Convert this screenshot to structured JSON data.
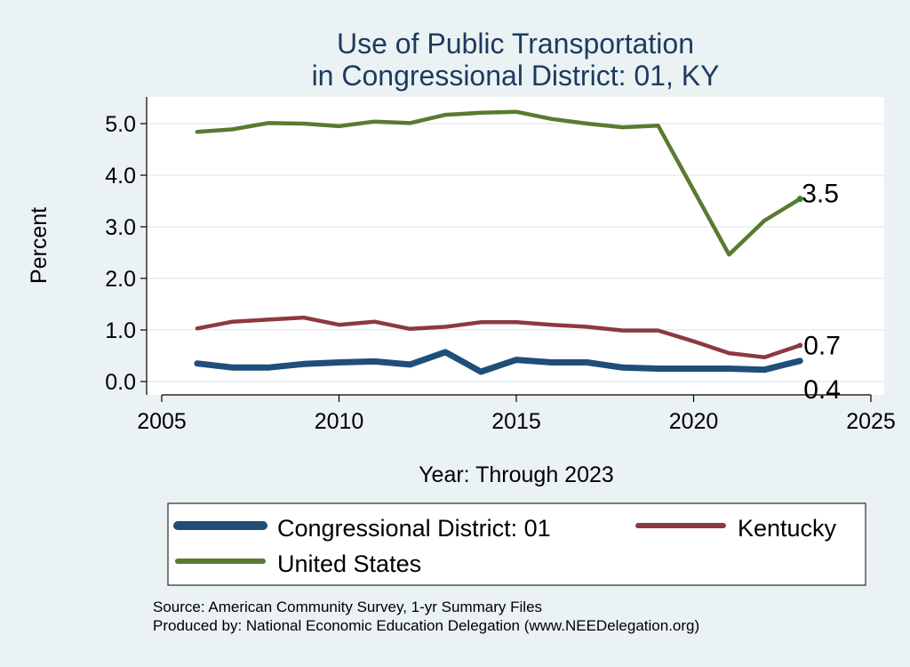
{
  "chart_data": {
    "type": "line",
    "title": [
      "Use of Public Transportation",
      "in Congressional District: 01, KY"
    ],
    "xlabel": "Year: Through 2023",
    "ylabel": "Percent",
    "xlim": [
      2005,
      2025
    ],
    "ylim": [
      0,
      5.3
    ],
    "x_ticks": [
      "2005",
      "2010",
      "2015",
      "2020",
      "2025"
    ],
    "y_ticks": [
      "0.0",
      "1.0",
      "2.0",
      "3.0",
      "4.0",
      "5.0"
    ],
    "grid": true,
    "legend_position": "bottom",
    "x": [
      2006,
      2007,
      2008,
      2009,
      2010,
      2011,
      2012,
      2013,
      2014,
      2015,
      2016,
      2017,
      2018,
      2019,
      2020,
      2021,
      2022,
      2023
    ],
    "series": [
      {
        "name": "Congressional District: 01",
        "color": "#1f4e79",
        "values": [
          0.35,
          0.27,
          0.27,
          0.34,
          0.37,
          0.39,
          0.33,
          0.57,
          0.19,
          0.42,
          0.37,
          0.37,
          0.27,
          0.25,
          0.25,
          0.25,
          0.23,
          0.4
        ],
        "end_label": "0.4"
      },
      {
        "name": "Kentucky",
        "color": "#8c3a3f",
        "values": [
          1.03,
          1.16,
          1.2,
          1.24,
          1.1,
          1.16,
          1.02,
          1.06,
          1.15,
          1.15,
          1.1,
          1.06,
          0.99,
          0.99,
          0.78,
          0.55,
          0.47,
          0.7
        ],
        "end_label": "0.7"
      },
      {
        "name": "United States",
        "color": "#5a7a31",
        "values": [
          4.84,
          4.89,
          5.01,
          5.0,
          4.95,
          5.04,
          5.01,
          5.17,
          5.21,
          5.23,
          5.09,
          5.0,
          4.93,
          4.96,
          3.71,
          2.46,
          3.12,
          3.54
        ],
        "end_label": "3.5"
      }
    ]
  },
  "footer": {
    "source": "Source: American Community Survey, 1-yr Summary Files",
    "produced_by": "Produced by: National Economic Education Delegation (www.NEEDelegation.org)"
  }
}
